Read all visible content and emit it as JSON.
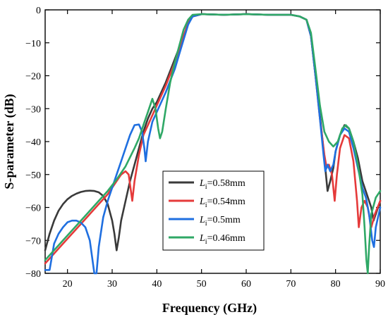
{
  "chart_data": {
    "type": "line",
    "xlabel": "Frequency (GHz)",
    "ylabel": "S-parameter (dB)",
    "xlim": [
      15,
      90
    ],
    "ylim": [
      -80,
      0
    ],
    "xticks": [
      20,
      30,
      40,
      50,
      60,
      70,
      80,
      90
    ],
    "yticks": [
      0,
      -10,
      -20,
      -30,
      -40,
      -50,
      -60,
      -70,
      -80
    ],
    "grid": false,
    "legend_position": "lower-middle",
    "series": [
      {
        "name": "Li=0.58mm",
        "legend_var": "L",
        "legend_sub": "i",
        "legend_rest": "=0.58mm",
        "color": "#3a3a3a",
        "points": [
          [
            15,
            -73
          ],
          [
            16,
            -68
          ],
          [
            17,
            -64
          ],
          [
            18,
            -61
          ],
          [
            19,
            -59
          ],
          [
            20,
            -57.5
          ],
          [
            21,
            -56.5
          ],
          [
            22,
            -55.8
          ],
          [
            23,
            -55.3
          ],
          [
            24,
            -55
          ],
          [
            25,
            -54.9
          ],
          [
            26,
            -55
          ],
          [
            27,
            -55.4
          ],
          [
            28,
            -56.5
          ],
          [
            29,
            -59
          ],
          [
            30,
            -64
          ],
          [
            30.5,
            -68
          ],
          [
            31,
            -73
          ],
          [
            31.5,
            -69
          ],
          [
            32,
            -64
          ],
          [
            33,
            -58
          ],
          [
            34,
            -52
          ],
          [
            35,
            -47
          ],
          [
            36,
            -42
          ],
          [
            37,
            -37
          ],
          [
            38,
            -33
          ],
          [
            39,
            -30
          ],
          [
            40,
            -28
          ],
          [
            42,
            -22
          ],
          [
            44,
            -15
          ],
          [
            46,
            -8
          ],
          [
            47,
            -4
          ],
          [
            48,
            -2
          ],
          [
            50,
            -1.3
          ],
          [
            55,
            -1.5
          ],
          [
            60,
            -1.3
          ],
          [
            65,
            -1.5
          ],
          [
            70,
            -1.5
          ],
          [
            72,
            -2
          ],
          [
            73.5,
            -3
          ],
          [
            74.5,
            -8
          ],
          [
            75.5,
            -20
          ],
          [
            76.5,
            -32
          ],
          [
            77.2,
            -41
          ],
          [
            77.7,
            -48
          ],
          [
            78.2,
            -55
          ],
          [
            78.8,
            -52
          ],
          [
            79.5,
            -48
          ],
          [
            80,
            -43
          ],
          [
            81,
            -38
          ],
          [
            82,
            -35
          ],
          [
            83,
            -36
          ],
          [
            84,
            -40
          ],
          [
            85,
            -45
          ],
          [
            86,
            -52
          ],
          [
            87,
            -56
          ],
          [
            88,
            -60
          ],
          [
            88.5,
            -64
          ],
          [
            89,
            -62
          ],
          [
            90,
            -58
          ]
        ]
      },
      {
        "name": "Li=0.54mm",
        "legend_var": "L",
        "legend_sub": "i",
        "legend_rest": "=0.54mm",
        "color": "#e53a3a",
        "points": [
          [
            15,
            -77
          ],
          [
            17,
            -74
          ],
          [
            19,
            -71
          ],
          [
            21,
            -68
          ],
          [
            23,
            -65
          ],
          [
            25,
            -62
          ],
          [
            27,
            -59
          ],
          [
            29,
            -56
          ],
          [
            30,
            -54
          ],
          [
            31,
            -52
          ],
          [
            32,
            -50
          ],
          [
            33,
            -49
          ],
          [
            33.7,
            -50
          ],
          [
            34.2,
            -55
          ],
          [
            34.5,
            -58
          ],
          [
            35,
            -52
          ],
          [
            36,
            -44
          ],
          [
            37,
            -38
          ],
          [
            38,
            -35
          ],
          [
            39,
            -32
          ],
          [
            40,
            -29
          ],
          [
            42,
            -23
          ],
          [
            44,
            -16
          ],
          [
            46,
            -8
          ],
          [
            47,
            -4
          ],
          [
            48,
            -2
          ],
          [
            50,
            -1.3
          ],
          [
            55,
            -1.5
          ],
          [
            60,
            -1.3
          ],
          [
            65,
            -1.5
          ],
          [
            70,
            -1.5
          ],
          [
            72,
            -2
          ],
          [
            73.5,
            -3
          ],
          [
            74.5,
            -8
          ],
          [
            75.5,
            -20
          ],
          [
            76.5,
            -33
          ],
          [
            77.5,
            -44
          ],
          [
            78,
            -48
          ],
          [
            78.5,
            -47
          ],
          [
            79.2,
            -50
          ],
          [
            79.8,
            -58
          ],
          [
            80.3,
            -50
          ],
          [
            81,
            -42
          ],
          [
            82,
            -38
          ],
          [
            83,
            -39
          ],
          [
            84,
            -46
          ],
          [
            84.8,
            -58
          ],
          [
            85.2,
            -66
          ],
          [
            85.8,
            -60
          ],
          [
            86.5,
            -58
          ],
          [
            87.2,
            -60
          ],
          [
            88,
            -66
          ],
          [
            88.8,
            -62
          ],
          [
            90,
            -58
          ]
        ]
      },
      {
        "name": "Li=0.5mm",
        "legend_var": "L",
        "legend_sub": "i",
        "legend_rest": "=0.5mm",
        "color": "#1f6fe0",
        "points": [
          [
            15,
            -79
          ],
          [
            16,
            -79
          ],
          [
            16.5,
            -75
          ],
          [
            17,
            -71
          ],
          [
            18,
            -68
          ],
          [
            19,
            -66
          ],
          [
            20,
            -64.5
          ],
          [
            21,
            -64
          ],
          [
            22,
            -64
          ],
          [
            23,
            -64.6
          ],
          [
            24,
            -66
          ],
          [
            25,
            -70
          ],
          [
            25.5,
            -75
          ],
          [
            26,
            -80
          ],
          [
            26.5,
            -80
          ],
          [
            27,
            -72
          ],
          [
            28,
            -63
          ],
          [
            29,
            -58
          ],
          [
            30,
            -54
          ],
          [
            31,
            -50
          ],
          [
            32,
            -46
          ],
          [
            33,
            -42
          ],
          [
            34,
            -38
          ],
          [
            35,
            -35
          ],
          [
            36,
            -34.8
          ],
          [
            36.7,
            -37
          ],
          [
            37.2,
            -42
          ],
          [
            37.5,
            -46
          ],
          [
            38,
            -40
          ],
          [
            39,
            -34
          ],
          [
            40,
            -31
          ],
          [
            42,
            -25
          ],
          [
            44,
            -18
          ],
          [
            46,
            -9
          ],
          [
            47,
            -4.5
          ],
          [
            48,
            -2
          ],
          [
            50,
            -1.3
          ],
          [
            55,
            -1.5
          ],
          [
            60,
            -1.3
          ],
          [
            65,
            -1.5
          ],
          [
            70,
            -1.5
          ],
          [
            72,
            -2
          ],
          [
            73.5,
            -3
          ],
          [
            74.5,
            -8
          ],
          [
            75.5,
            -20
          ],
          [
            76.5,
            -33
          ],
          [
            77.3,
            -44
          ],
          [
            77.7,
            -49
          ],
          [
            78.2,
            -47
          ],
          [
            78.8,
            -49
          ],
          [
            79.5,
            -47
          ],
          [
            80,
            -43
          ],
          [
            81,
            -38
          ],
          [
            82,
            -36
          ],
          [
            83,
            -37
          ],
          [
            84,
            -42
          ],
          [
            85,
            -48
          ],
          [
            86,
            -54
          ],
          [
            86.8,
            -57
          ],
          [
            87.5,
            -62
          ],
          [
            88.2,
            -70
          ],
          [
            88.6,
            -72
          ],
          [
            89,
            -66
          ],
          [
            90,
            -60
          ]
        ]
      },
      {
        "name": "Li=0.46mm",
        "legend_var": "L",
        "legend_sub": "i",
        "legend_rest": "=0.46mm",
        "color": "#2fa866",
        "points": [
          [
            15,
            -76
          ],
          [
            17,
            -73
          ],
          [
            19,
            -70
          ],
          [
            21,
            -67
          ],
          [
            23,
            -64
          ],
          [
            25,
            -61
          ],
          [
            27,
            -58
          ],
          [
            29,
            -55
          ],
          [
            31,
            -51.5
          ],
          [
            33,
            -47.5
          ],
          [
            35,
            -42
          ],
          [
            36,
            -39
          ],
          [
            37,
            -35
          ],
          [
            38,
            -31
          ],
          [
            39,
            -27
          ],
          [
            39.7,
            -30
          ],
          [
            40.3,
            -36
          ],
          [
            40.7,
            -39
          ],
          [
            41.2,
            -37
          ],
          [
            42,
            -30
          ],
          [
            43,
            -22
          ],
          [
            44,
            -16
          ],
          [
            45,
            -11
          ],
          [
            46,
            -6
          ],
          [
            47,
            -3
          ],
          [
            48,
            -1.5
          ],
          [
            50,
            -1.3
          ],
          [
            55,
            -1.5
          ],
          [
            60,
            -1.3
          ],
          [
            65,
            -1.5
          ],
          [
            70,
            -1.5
          ],
          [
            72,
            -2
          ],
          [
            73.5,
            -3
          ],
          [
            74.5,
            -7
          ],
          [
            75.5,
            -18
          ],
          [
            76.5,
            -29
          ],
          [
            77.5,
            -37
          ],
          [
            78.5,
            -40
          ],
          [
            79.5,
            -41.5
          ],
          [
            80.5,
            -40
          ],
          [
            81.5,
            -36
          ],
          [
            82.3,
            -35
          ],
          [
            83,
            -36
          ],
          [
            84,
            -40
          ],
          [
            85,
            -47
          ],
          [
            86,
            -56
          ],
          [
            86.5,
            -66
          ],
          [
            86.9,
            -76
          ],
          [
            87.2,
            -80
          ],
          [
            87.5,
            -72
          ],
          [
            88,
            -62
          ],
          [
            89,
            -57
          ],
          [
            90,
            -55
          ]
        ]
      }
    ]
  }
}
